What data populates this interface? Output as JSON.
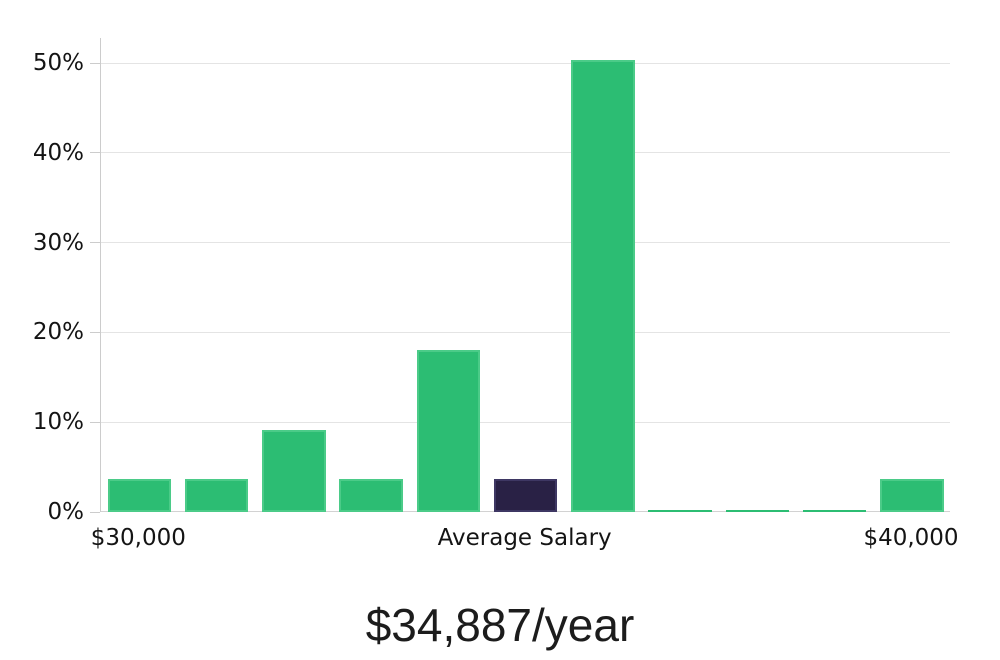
{
  "chart_data": {
    "type": "bar",
    "title": "$34,887/year",
    "values": [
      3.7,
      3.7,
      9.1,
      3.7,
      18.0,
      3.7,
      50.3,
      0.2,
      0.2,
      0.2,
      3.7
    ],
    "highlight_index": 5,
    "x_tick_labels": [
      {
        "bar_index": 0,
        "label": "$30,000"
      },
      {
        "bar_index": 5,
        "label": "Average Salary"
      },
      {
        "bar_index": 10,
        "label": "$40,000"
      }
    ],
    "y_tick_values": [
      0,
      10,
      20,
      30,
      40,
      50
    ],
    "y_tick_labels": [
      "0%",
      "10%",
      "20%",
      "30%",
      "40%",
      "50%"
    ],
    "ylim": [
      0,
      52.8
    ],
    "grid": true,
    "legend": false,
    "colors": {
      "bar_fill": "#2cbd73",
      "bar_border": "#4bcb88",
      "highlight_fill": "#292145",
      "highlight_border": "#3e3763",
      "gridline": "#e4e4e4",
      "axis": "#cccccc",
      "text": "#141414"
    }
  }
}
